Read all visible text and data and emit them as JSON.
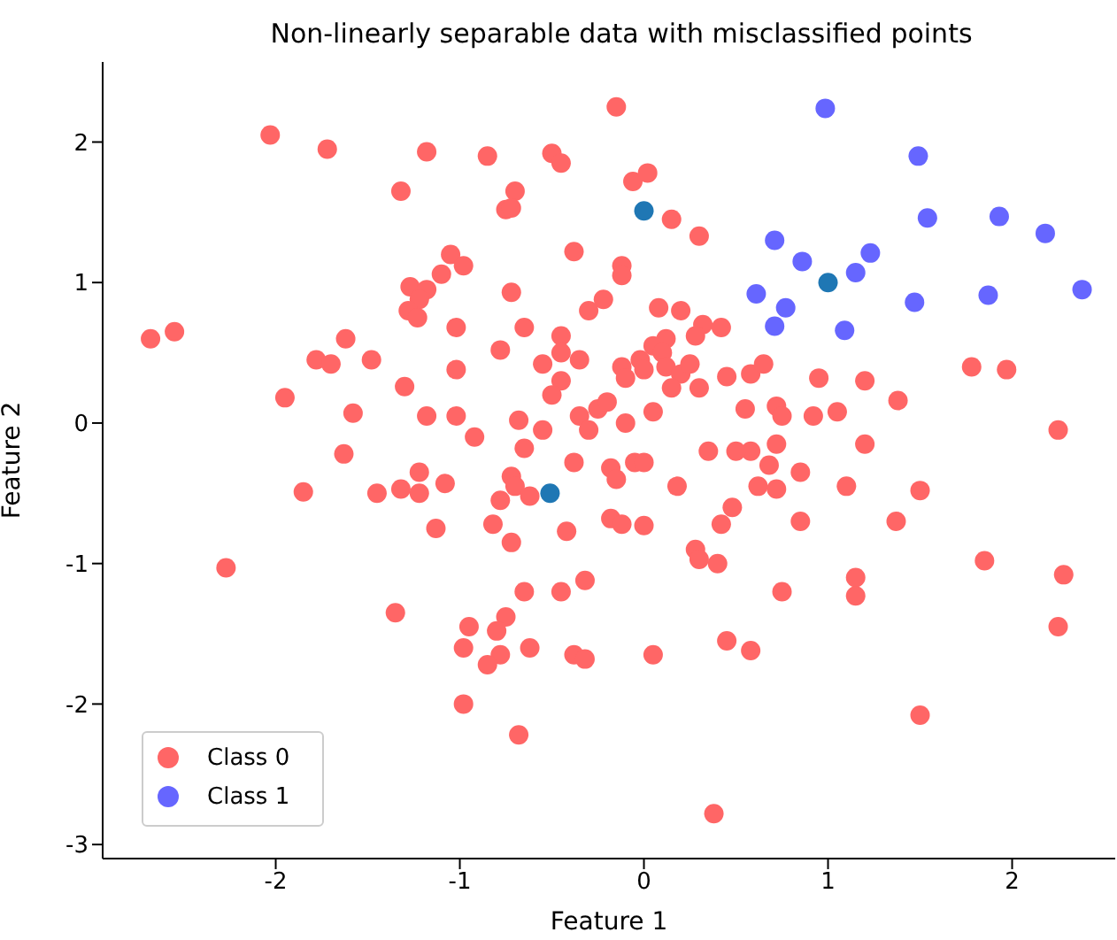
{
  "chart_data": {
    "type": "scatter",
    "title": "Non-linearly separable data with misclassified points",
    "xlabel": "Feature 1",
    "ylabel": "Feature 2",
    "xlim": [
      -2.94,
      2.56
    ],
    "ylim": [
      -3.1,
      2.57
    ],
    "xticks": [
      -2,
      -1,
      0,
      1,
      2
    ],
    "yticks": [
      -3,
      -2,
      -1,
      0,
      1,
      2
    ],
    "grid": false,
    "legend": "bottom left",
    "marker": "circle",
    "series": [
      {
        "name": "Class 0",
        "color": "#ff6666",
        "x": [
          -2.03,
          -1.72,
          -1.18,
          -0.85,
          -0.5,
          -0.45,
          -0.15,
          -0.06,
          0.02,
          -1.32,
          -0.7,
          -0.75,
          -0.72,
          0.15,
          0.3,
          -0.38,
          -1.05,
          -0.98,
          -1.1,
          -0.12,
          -0.12,
          -0.72,
          -1.27,
          -1.18,
          -1.22,
          -1.28,
          -1.23,
          -1.02,
          -0.65,
          -0.22,
          -0.3,
          0.08,
          0.2,
          0.32,
          0.42,
          0.28,
          0.12,
          0.05,
          -0.45,
          -0.45,
          -0.55,
          -0.35,
          0.1,
          -0.02,
          0.0,
          0.12,
          0.2,
          -0.12,
          -0.1,
          0.25,
          -0.45,
          -0.5,
          -0.25,
          -0.35,
          -0.2,
          0.15,
          0.3,
          0.45,
          0.58,
          0.65,
          0.55,
          0.72,
          0.75,
          0.95,
          1.2,
          1.05,
          0.92,
          0.72,
          0.58,
          0.5,
          0.35,
          1.2,
          1.38,
          1.78,
          1.97,
          -2.68,
          -2.55,
          -1.62,
          -1.78,
          -1.7,
          -1.48,
          -1.58,
          -1.95,
          -1.63,
          -1.3,
          -1.02,
          -0.78,
          -1.02,
          -1.18,
          -0.68,
          -0.92,
          -0.65,
          -0.55,
          -0.3,
          -0.1,
          0.05,
          -0.05,
          -0.18,
          0.0,
          -0.15,
          0.18,
          -0.72,
          -0.7,
          -0.62,
          -0.78,
          -0.38,
          -0.42,
          -1.22,
          -1.22,
          -1.08,
          -1.45,
          -1.32,
          -1.85,
          -1.13,
          -0.82,
          -0.72,
          -0.18,
          -0.12,
          0.0,
          0.28,
          0.3,
          0.48,
          0.42,
          0.62,
          0.72,
          0.68,
          0.85,
          0.85,
          1.1,
          0.75,
          1.15,
          1.15,
          1.37,
          0.4,
          -0.32,
          -0.65,
          -0.45,
          -0.75,
          -0.8,
          -0.78,
          -0.62,
          -0.95,
          -0.98,
          -0.38,
          -0.32,
          0.05,
          0.45,
          0.58,
          -0.85,
          -1.35,
          -0.98,
          -0.68,
          -2.27,
          0.38,
          1.5,
          1.85,
          2.28,
          2.25,
          2.25,
          1.5
        ],
        "values": [
          2.05,
          1.95,
          1.93,
          1.9,
          1.92,
          1.85,
          2.25,
          1.72,
          1.78,
          1.65,
          1.65,
          1.52,
          1.53,
          1.45,
          1.33,
          1.22,
          1.2,
          1.12,
          1.06,
          1.12,
          1.05,
          0.93,
          0.97,
          0.95,
          0.88,
          0.8,
          0.75,
          0.68,
          0.68,
          0.88,
          0.8,
          0.82,
          0.8,
          0.7,
          0.68,
          0.62,
          0.6,
          0.55,
          0.62,
          0.5,
          0.42,
          0.45,
          0.5,
          0.45,
          0.38,
          0.4,
          0.35,
          0.4,
          0.32,
          0.42,
          0.3,
          0.2,
          0.1,
          0.05,
          0.15,
          0.25,
          0.25,
          0.33,
          0.35,
          0.42,
          0.1,
          0.12,
          0.05,
          0.32,
          0.3,
          0.08,
          0.05,
          -0.15,
          -0.2,
          -0.2,
          -0.2,
          -0.15,
          0.16,
          0.4,
          0.38,
          0.6,
          0.65,
          0.6,
          0.45,
          0.42,
          0.45,
          0.07,
          0.18,
          -0.22,
          0.26,
          0.38,
          0.52,
          0.05,
          0.05,
          0.02,
          -0.1,
          -0.18,
          -0.05,
          -0.05,
          0.0,
          0.08,
          -0.28,
          -0.32,
          -0.28,
          -0.4,
          -0.45,
          -0.38,
          -0.45,
          -0.52,
          -0.55,
          -0.28,
          -0.77,
          -0.35,
          -0.5,
          -0.43,
          -0.5,
          -0.47,
          -0.49,
          -0.75,
          -0.72,
          -0.85,
          -0.68,
          -0.72,
          -0.73,
          -0.9,
          -0.97,
          -0.6,
          -0.72,
          -0.45,
          -0.47,
          -0.3,
          -0.35,
          -0.7,
          -0.45,
          -1.2,
          -1.1,
          -1.23,
          -0.7,
          -1.0,
          -1.12,
          -1.2,
          -1.2,
          -1.38,
          -1.48,
          -1.65,
          -1.6,
          -1.45,
          -1.6,
          -1.65,
          -1.68,
          -1.65,
          -1.55,
          -1.62,
          -1.72,
          -1.35,
          -2.0,
          -2.22,
          -1.03,
          -2.78,
          -2.08,
          -0.98,
          -1.08,
          -1.45,
          -0.05,
          -0.48
        ]
      },
      {
        "name": "Class 1",
        "color": "#6666ff",
        "x": [
          0.985,
          1.49,
          1.54,
          1.93,
          2.18,
          0.71,
          0.86,
          1.23,
          1.15,
          1.47,
          1.87,
          2.38,
          0.77,
          0.71,
          1.09,
          0.61
        ],
        "values": [
          2.24,
          1.9,
          1.46,
          1.47,
          1.35,
          1.3,
          1.15,
          1.21,
          1.07,
          0.86,
          0.91,
          0.95,
          0.82,
          0.69,
          0.66,
          0.92
        ]
      },
      {
        "color": "#1f77b4",
        "x": [
          1.0,
          0.0,
          -0.51
        ],
        "values": [
          1.0,
          1.51,
          -0.5
        ]
      }
    ]
  }
}
